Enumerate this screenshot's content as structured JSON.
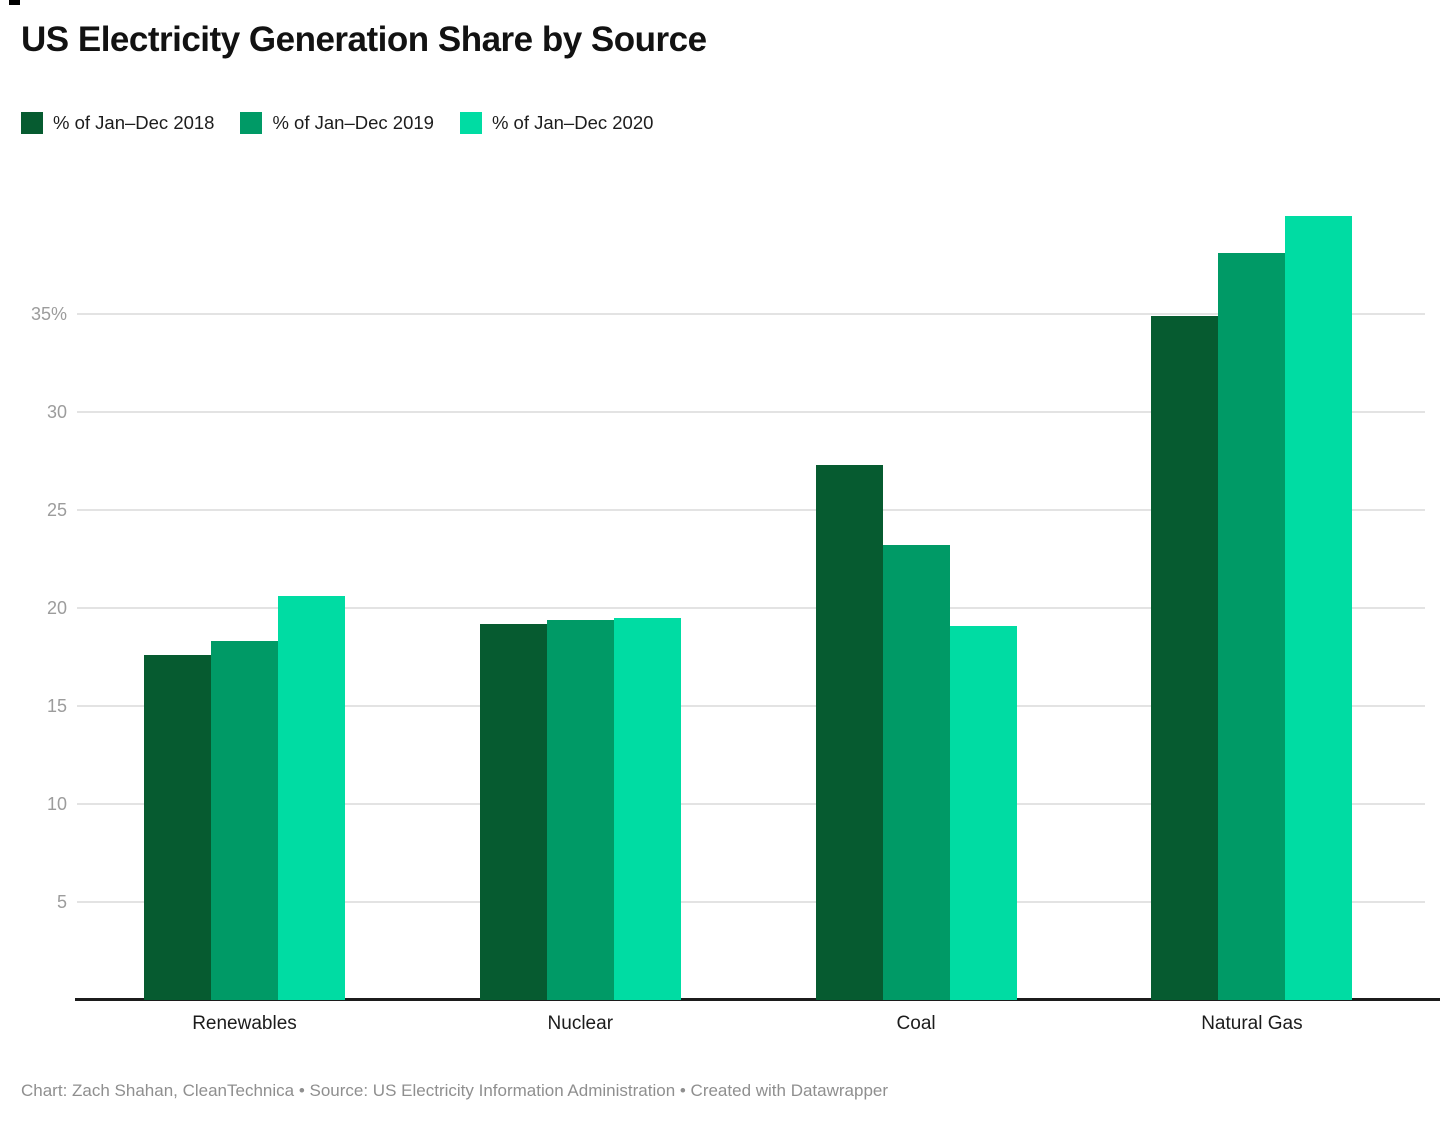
{
  "title": "US Electricity Generation Share by Source",
  "footer": {
    "text": "Chart: Zach Shahan, CleanTechnica • Source: US Electricity Information Administration • Created with Datawrapper"
  },
  "colors": {
    "series_2018": "#065B30",
    "series_2019": "#009A66",
    "series_2020": "#00DCA3",
    "gridline": "#e3e3e3",
    "axis_line": "#1c1c1c",
    "tick_text": "#9c9c9c",
    "footer_text": "#8f8f8f"
  },
  "chart_data": {
    "type": "bar",
    "categories": [
      "Renewables",
      "Nuclear",
      "Coal",
      "Natural Gas"
    ],
    "series": [
      {
        "name": "% of Jan–Dec 2018",
        "color": "#065B30",
        "values": [
          17.6,
          19.2,
          27.3,
          34.9
        ]
      },
      {
        "name": "% of Jan–Dec 2019",
        "color": "#009A66",
        "values": [
          18.3,
          19.4,
          23.2,
          38.1
        ]
      },
      {
        "name": "% of Jan–Dec 2020",
        "color": "#00DCA3",
        "values": [
          20.6,
          19.5,
          19.1,
          40.0
        ]
      }
    ],
    "title": "US Electricity Generation Share by Source",
    "xlabel": "",
    "ylabel": "",
    "yticks": [
      5,
      10,
      15,
      20,
      25,
      30,
      35
    ],
    "ytick_labels": [
      "5",
      "10",
      "15",
      "20",
      "25",
      "30",
      "35%"
    ],
    "ylim": [
      0,
      40.2
    ],
    "grid": "horizontal",
    "legend_position": "top-left"
  }
}
